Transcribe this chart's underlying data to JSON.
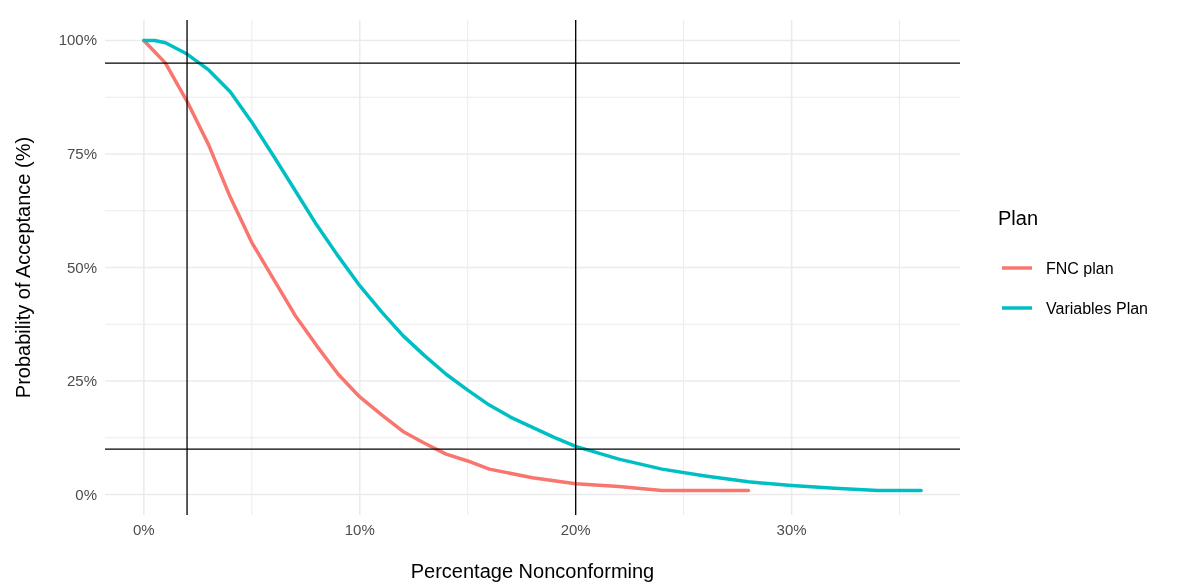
{
  "chart_data": {
    "type": "line",
    "xlabel": "Percentage Nonconforming",
    "ylabel": "Probability of Acceptance (%)",
    "legend_title": "Plan",
    "legend": "right",
    "grid": true,
    "line_style": "solid",
    "xlim": [
      -1.8,
      37.8
    ],
    "ylim": [
      -4.5,
      104.5
    ],
    "xticks": [
      {
        "value": 0,
        "label": "0%"
      },
      {
        "value": 5,
        "label": null
      },
      {
        "value": 10,
        "label": "10%"
      },
      {
        "value": 15,
        "label": null
      },
      {
        "value": 20,
        "label": "20%"
      },
      {
        "value": 25,
        "label": null
      },
      {
        "value": 30,
        "label": "30%"
      },
      {
        "value": 35,
        "label": null
      }
    ],
    "yticks": [
      {
        "value": 0,
        "label": "0%"
      },
      {
        "value": 12.5,
        "label": null
      },
      {
        "value": 25,
        "label": "25%"
      },
      {
        "value": 37.5,
        "label": null
      },
      {
        "value": 50,
        "label": "50%"
      },
      {
        "value": 62.5,
        "label": null
      },
      {
        "value": 75,
        "label": "75%"
      },
      {
        "value": 87.5,
        "label": null
      },
      {
        "value": 100,
        "label": "100%"
      }
    ],
    "ref_lines": [
      {
        "axis": "x",
        "value": 2,
        "color": "#000000"
      },
      {
        "axis": "x",
        "value": 20,
        "color": "#000000"
      },
      {
        "axis": "y",
        "value": 95,
        "color": "#000000"
      },
      {
        "axis": "y",
        "value": 10,
        "color": "#000000"
      }
    ],
    "series": [
      {
        "name": "FNC plan",
        "color": "#f8766d",
        "x": [
          0,
          1,
          2,
          3,
          4,
          5,
          6,
          7,
          8,
          9,
          10,
          11,
          12,
          13,
          14,
          15,
          16,
          18,
          20,
          22,
          24,
          28
        ],
        "values": [
          100,
          95,
          86.6,
          77,
          65.5,
          55.5,
          47.5,
          39.5,
          32.8,
          26.5,
          21.5,
          17.6,
          13.9,
          11.3,
          8.9,
          7.4,
          5.6,
          3.7,
          2.4,
          1.8,
          0.9,
          0.9
        ]
      },
      {
        "name": "Variables Plan",
        "color": "#00bfc4",
        "x": [
          0,
          0.5,
          1,
          2,
          3,
          4,
          5,
          6,
          7,
          8,
          9,
          10,
          11,
          12,
          13,
          14,
          15,
          16,
          17,
          18,
          19,
          20,
          22,
          24,
          26,
          28,
          30,
          32,
          34,
          36
        ],
        "values": [
          100,
          100,
          99.5,
          97,
          93.5,
          88.7,
          82,
          74.6,
          67,
          59.4,
          52.5,
          46,
          40.3,
          35,
          30.6,
          26.5,
          23,
          19.7,
          17,
          14.8,
          12.6,
          10.6,
          7.8,
          5.6,
          4.1,
          2.8,
          2,
          1.4,
          0.9,
          0.9
        ]
      }
    ]
  }
}
